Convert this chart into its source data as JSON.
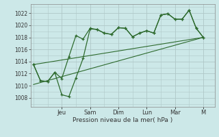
{
  "xlabel": "Pression niveau de la mer( hPa )",
  "bg_color": "#cce8e8",
  "grid_color": "#b0c8c8",
  "line_color": "#2d6a2d",
  "ylim": [
    1006.5,
    1023.5
  ],
  "yticks": [
    1008,
    1010,
    1012,
    1014,
    1016,
    1018,
    1020,
    1022
  ],
  "x_day_labels": [
    "Jeu",
    "Sam",
    "Dim",
    "Lun",
    "Mar",
    "M"
  ],
  "x_day_positions": [
    2.0,
    4.0,
    6.0,
    8.0,
    10.0,
    12.0
  ],
  "xlim": [
    -0.2,
    12.8
  ],
  "line1_x": [
    0,
    0.5,
    1.0,
    1.5,
    2.0,
    2.5,
    3.0,
    3.5,
    4.0,
    4.5,
    5.0,
    5.5,
    6.0,
    6.5,
    7.0,
    7.5,
    8.0,
    8.5,
    9.0,
    9.5,
    10.0,
    10.5,
    11.0,
    11.5,
    12.0
  ],
  "line1_y": [
    1013.5,
    1010.8,
    1010.7,
    1012.2,
    1011.2,
    1014.8,
    1018.3,
    1017.7,
    1019.5,
    1019.3,
    1018.7,
    1018.5,
    1019.6,
    1019.5,
    1018.1,
    1018.7,
    1019.1,
    1018.7,
    1021.7,
    1021.9,
    1021.0,
    1021.0,
    1022.5,
    1019.5,
    1018.0
  ],
  "line2_x": [
    0,
    0.5,
    1.0,
    1.5,
    2.0,
    2.5,
    3.0,
    3.5,
    4.0,
    4.5,
    5.0,
    5.5,
    6.0,
    6.5,
    7.0,
    7.5,
    8.0,
    8.5,
    9.0,
    9.5,
    10.0,
    10.5,
    11.0,
    11.5,
    12.0
  ],
  "line2_y": [
    1013.5,
    1010.8,
    1010.7,
    1012.2,
    1008.5,
    1008.2,
    1011.3,
    1014.5,
    1019.4,
    1019.3,
    1018.7,
    1018.5,
    1019.6,
    1019.5,
    1018.1,
    1018.7,
    1019.1,
    1018.7,
    1021.7,
    1021.9,
    1021.0,
    1021.0,
    1022.5,
    1019.5,
    1018.0
  ],
  "line3_x": [
    0,
    12.0
  ],
  "line3_y": [
    1010.2,
    1018.0
  ],
  "line4_x": [
    0,
    12.0
  ],
  "line4_y": [
    1013.5,
    1018.0
  ]
}
